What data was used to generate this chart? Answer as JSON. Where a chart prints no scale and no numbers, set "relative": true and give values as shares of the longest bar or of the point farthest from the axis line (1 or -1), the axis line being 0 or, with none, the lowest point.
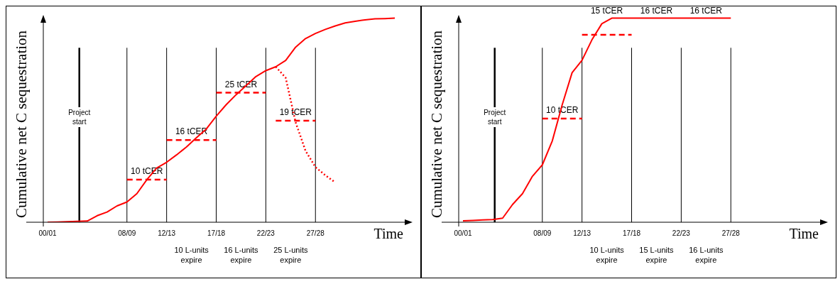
{
  "chart_data": [
    {
      "type": "line",
      "relative": true,
      "ylabel": "Cumulative net C sequestration",
      "xlabel": "Time",
      "categories": [
        "00/01",
        null,
        null,
        null,
        null,
        null,
        null,
        null,
        "08/09",
        null,
        null,
        null,
        "12/13",
        null,
        null,
        null,
        null,
        "17/18",
        null,
        null,
        null,
        null,
        "22/23",
        null,
        null,
        null,
        null,
        "27/28",
        null,
        null,
        null,
        null,
        null,
        null,
        null,
        null,
        null
      ],
      "series": [
        {
          "color": "#ff0000",
          "line_style": "solid",
          "values": [
            0,
            0.001,
            0.003,
            0.004,
            0.006,
            0.032,
            0.05,
            0.08,
            0.099,
            0.14,
            0.208,
            0.266,
            0.294,
            0.33,
            0.369,
            0.414,
            0.457,
            0.52,
            0.576,
            0.625,
            0.669,
            0.714,
            0.743,
            0.762,
            0.793,
            0.858,
            0.9,
            0.925,
            0.945,
            0.962,
            0.977,
            0.985,
            0.992,
            0.997,
            0.998,
            1,
            null
          ]
        },
        {
          "color": "#ff0000",
          "line_style": "dotted",
          "values": [
            null,
            null,
            null,
            null,
            null,
            null,
            null,
            null,
            null,
            null,
            null,
            null,
            null,
            null,
            null,
            null,
            null,
            null,
            null,
            null,
            null,
            null,
            null,
            0.762,
            0.708,
            0.49,
            0.35,
            0.27,
            0.23,
            0.195,
            null,
            null,
            null,
            null,
            null,
            null,
            null
          ]
        },
        {
          "name": "10 tCER",
          "color": "#ff0000",
          "line_style": "dashed",
          "values": [
            null,
            null,
            null,
            null,
            null,
            null,
            null,
            null,
            0.209,
            0.209,
            0.209,
            0.209,
            0.209,
            null,
            null,
            null,
            null,
            null,
            null,
            null,
            null,
            null,
            null,
            null,
            null,
            null,
            null,
            null,
            null,
            null,
            null,
            null,
            null,
            null,
            null,
            null,
            null
          ]
        },
        {
          "name": "16 tCER",
          "color": "#ff0000",
          "line_style": "dashed",
          "values": [
            null,
            null,
            null,
            null,
            null,
            null,
            null,
            null,
            null,
            null,
            null,
            null,
            0.403,
            0.403,
            0.403,
            0.403,
            0.403,
            0.403,
            null,
            null,
            null,
            null,
            null,
            null,
            null,
            null,
            null,
            null,
            null,
            null,
            null,
            null,
            null,
            null,
            null,
            null,
            null
          ]
        },
        {
          "name": "25 tCER",
          "color": "#ff0000",
          "line_style": "dashed",
          "values": [
            null,
            null,
            null,
            null,
            null,
            null,
            null,
            null,
            null,
            null,
            null,
            null,
            null,
            null,
            null,
            null,
            null,
            0.635,
            0.635,
            0.635,
            0.635,
            0.635,
            0.635,
            null,
            null,
            null,
            null,
            null,
            null,
            null,
            null,
            null,
            null,
            null,
            null,
            null,
            null
          ]
        },
        {
          "name": "19 tCER",
          "color": "#ff0000",
          "line_style": "dashed",
          "values": [
            null,
            null,
            null,
            null,
            null,
            null,
            null,
            null,
            null,
            null,
            null,
            null,
            null,
            null,
            null,
            null,
            null,
            null,
            null,
            null,
            null,
            null,
            null,
            0.498,
            0.498,
            0.498,
            0.498,
            0.498,
            null,
            null,
            null,
            null,
            null,
            null,
            null,
            null,
            null
          ]
        }
      ],
      "ref_lines": [
        {
          "axis": "x",
          "value": "08/09"
        },
        {
          "axis": "x",
          "value": "12/13"
        },
        {
          "axis": "x",
          "value": "17/18"
        },
        {
          "axis": "x",
          "value": "22/23"
        },
        {
          "axis": "x",
          "value": "27/28"
        }
      ],
      "annotations": [
        "Project start",
        "10 L-units expire",
        "16 L-units expire",
        "25 L-units expire"
      ],
      "marker": "none",
      "grid": false,
      "legend": false
    },
    {
      "type": "line",
      "relative": true,
      "ylabel": "Cumulative net C sequestration",
      "xlabel": "Time",
      "categories": [
        "00/01",
        null,
        null,
        null,
        null,
        null,
        null,
        null,
        "08/09",
        null,
        null,
        null,
        "12/13",
        null,
        null,
        null,
        null,
        "17/18",
        null,
        null,
        null,
        null,
        "22/23",
        null,
        null,
        null,
        null,
        "27/28",
        null,
        null,
        null,
        null,
        null,
        null,
        null,
        null,
        null
      ],
      "series": [
        {
          "color": "#ff0000",
          "line_style": "solid",
          "values": [
            0.007,
            0.009,
            0.011,
            0.013,
            0.02,
            0.087,
            0.14,
            0.225,
            0.281,
            0.398,
            0.575,
            0.733,
            0.794,
            0.894,
            0.973,
            1,
            1,
            1,
            1,
            1,
            1,
            1,
            1,
            1,
            1,
            1,
            1,
            1,
            null,
            null,
            null,
            null,
            null,
            null,
            null,
            null,
            null
          ]
        },
        {
          "name": "10 tCER",
          "color": "#ff0000",
          "line_style": "dashed",
          "values": [
            null,
            null,
            null,
            null,
            null,
            null,
            null,
            null,
            0.508,
            0.508,
            0.508,
            0.508,
            0.508,
            null,
            null,
            null,
            null,
            null,
            null,
            null,
            null,
            null,
            null,
            null,
            null,
            null,
            null,
            null,
            null,
            null,
            null,
            null,
            null,
            null,
            null,
            null,
            null
          ]
        },
        {
          "color": "#ff0000",
          "line_style": "dashed",
          "values": [
            null,
            null,
            null,
            null,
            null,
            null,
            null,
            null,
            null,
            null,
            null,
            null,
            0.919,
            0.919,
            0.919,
            0.919,
            0.919,
            0.919,
            null,
            null,
            null,
            null,
            null,
            null,
            null,
            null,
            null,
            null,
            null,
            null,
            null,
            null,
            null,
            null,
            null,
            null,
            null
          ]
        }
      ],
      "ref_lines": [
        {
          "axis": "x",
          "value": "08/09"
        },
        {
          "axis": "x",
          "value": "12/13"
        },
        {
          "axis": "x",
          "value": "17/18"
        },
        {
          "axis": "x",
          "value": "22/23"
        },
        {
          "axis": "x",
          "value": "27/28"
        }
      ],
      "annotations": [
        "Project start",
        {
          "text": "15 tCER",
          "x": "17/18",
          "y": 1
        },
        {
          "text": "16 tCER",
          "x": "22/23",
          "y": 1
        },
        {
          "text": "16 tCER",
          "x": "27/28",
          "y": 1
        },
        "10 L-units expire",
        "15 L-units expire",
        "16 L-units expire"
      ],
      "marker": "none",
      "grid": false,
      "legend": false
    }
  ]
}
